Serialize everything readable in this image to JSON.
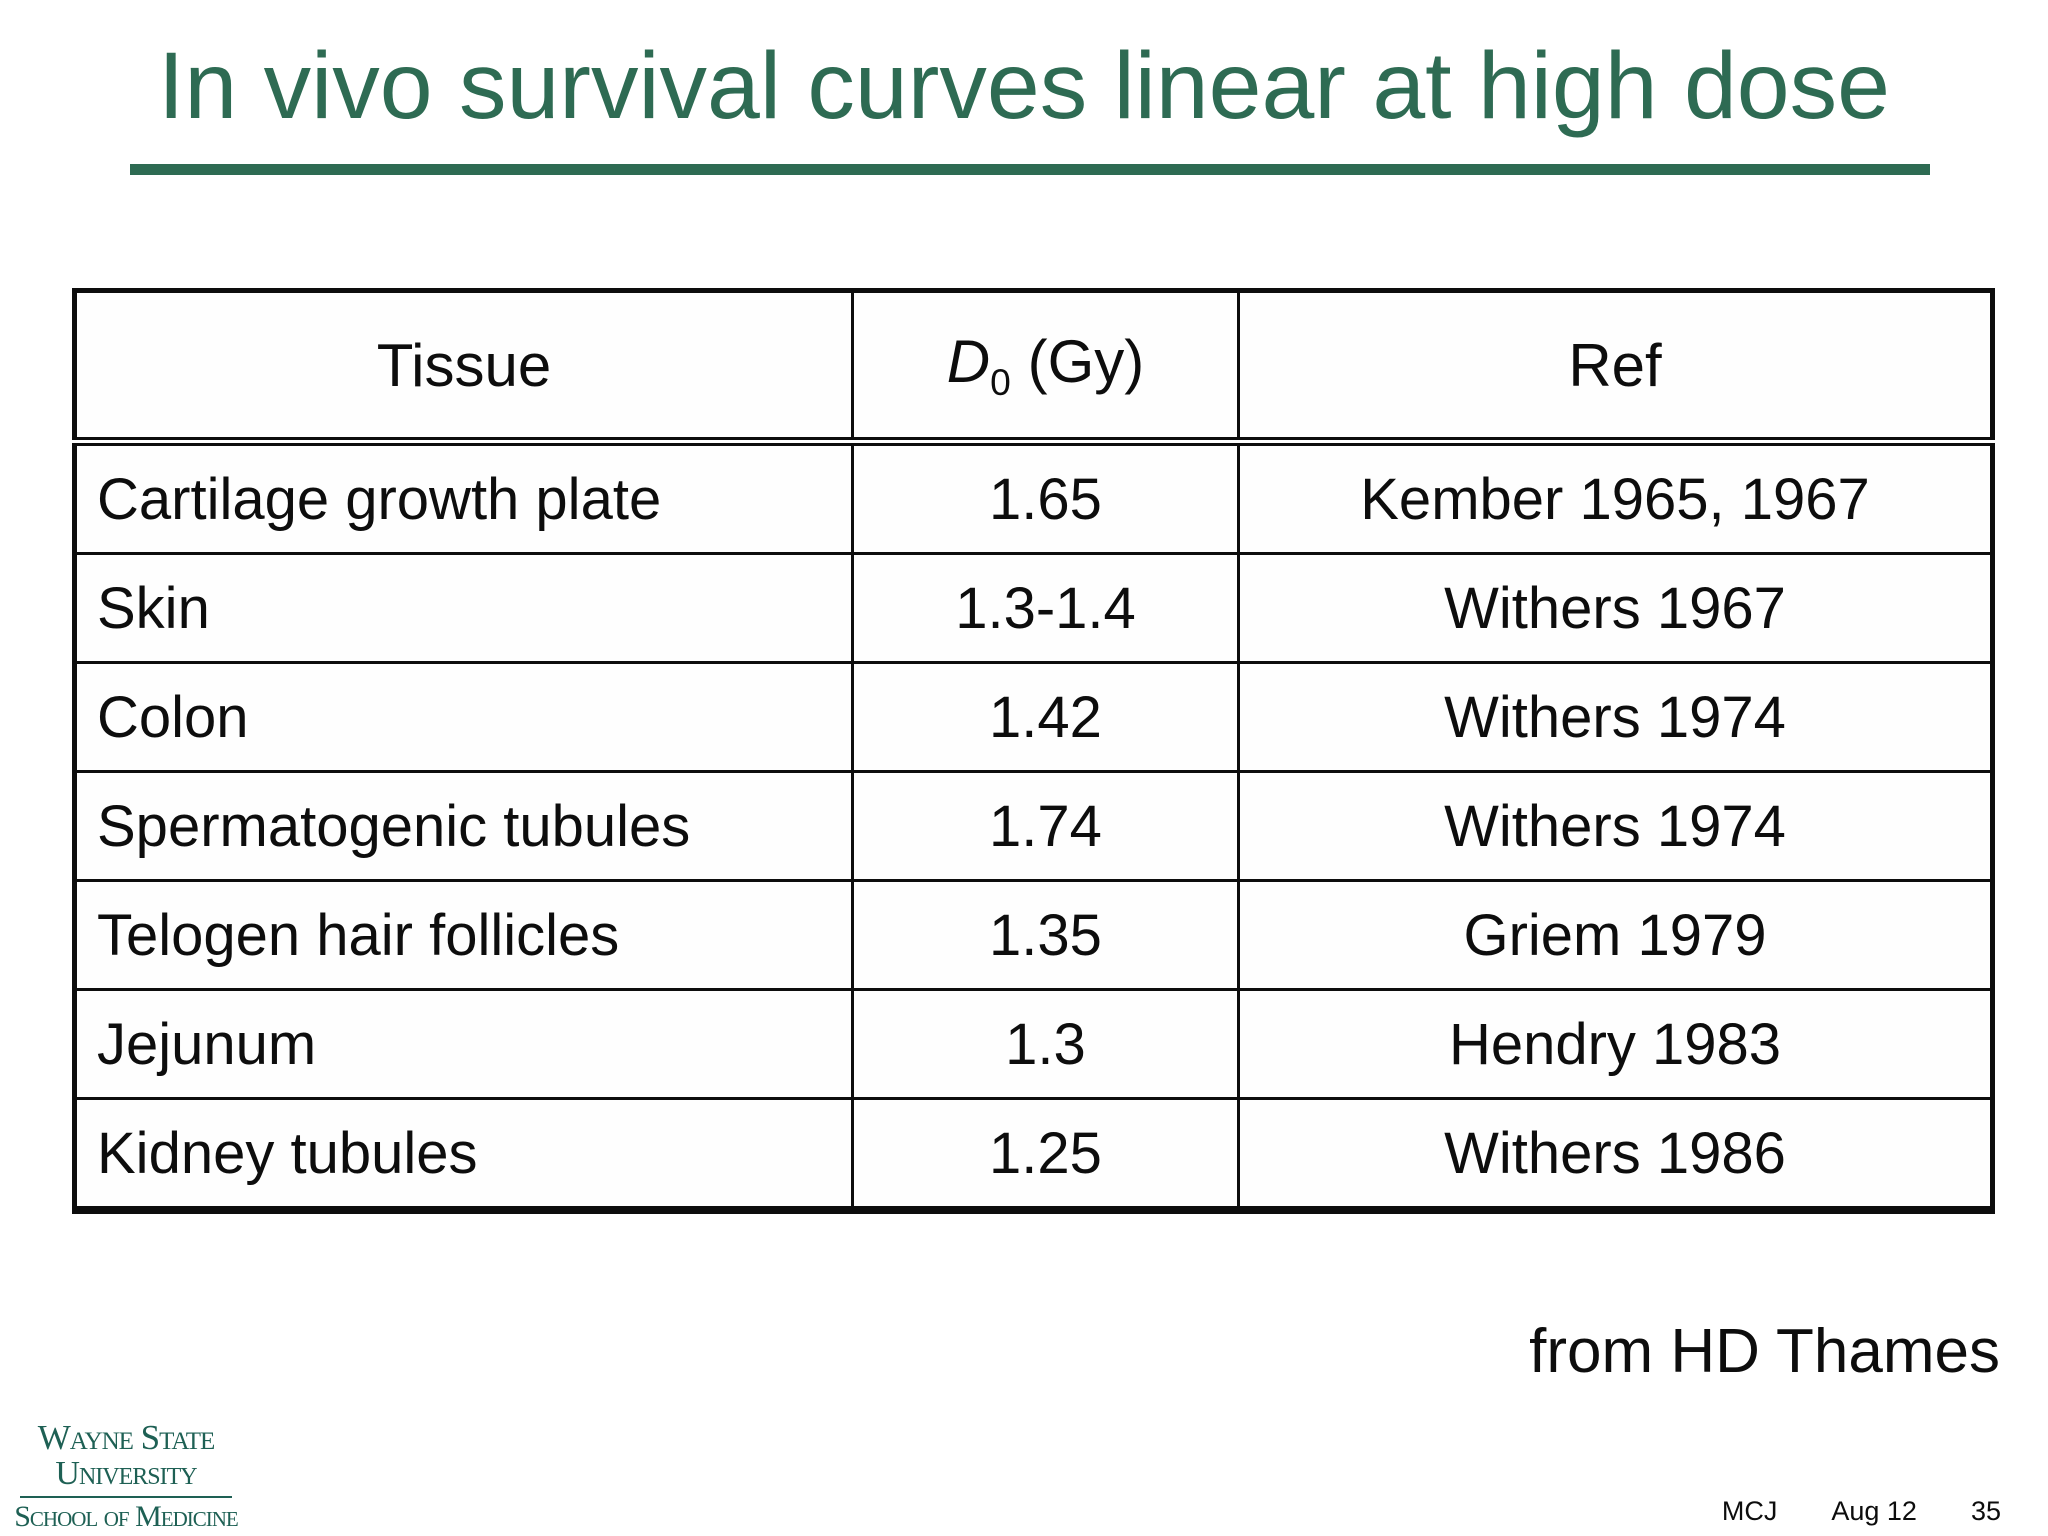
{
  "slide": {
    "title": "In vivo survival curves linear at high dose",
    "attribution": "from HD Thames"
  },
  "table": {
    "headers": {
      "tissue": "Tissue",
      "d0_symbol": "D",
      "d0_subscript": "0",
      "d0_unit": "(Gy)",
      "ref": "Ref"
    },
    "rows": [
      {
        "tissue": "Cartilage growth plate",
        "d0": "1.65",
        "ref": "Kember 1965, 1967"
      },
      {
        "tissue": "Skin",
        "d0": "1.3-1.4",
        "ref": "Withers 1967"
      },
      {
        "tissue": "Colon",
        "d0": "1.42",
        "ref": "Withers 1974"
      },
      {
        "tissue": "Spermatogenic tubules",
        "d0": "1.74",
        "ref": "Withers 1974"
      },
      {
        "tissue": "Telogen hair follicles",
        "d0": "1.35",
        "ref": "Griem 1979"
      },
      {
        "tissue": "Jejunum",
        "d0": "1.3",
        "ref": "Hendry 1983"
      },
      {
        "tissue": "Kidney tubules",
        "d0": "1.25",
        "ref": "Withers 1986"
      }
    ]
  },
  "logo": {
    "line1": "Wayne State",
    "line2": "University",
    "line3": "School of Medicine"
  },
  "footer": {
    "initials": "MCJ",
    "date": "Aug 12",
    "page": "35"
  },
  "colors": {
    "title_green": "#2e6b53",
    "logo_green": "#1e6054",
    "text_black": "#0d0d0d"
  }
}
